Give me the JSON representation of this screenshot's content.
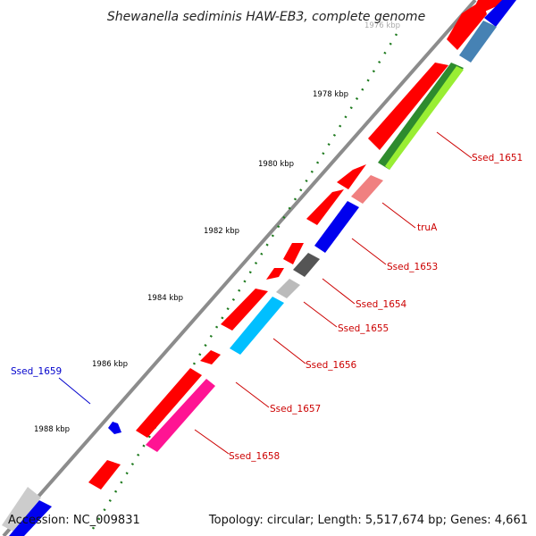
{
  "title": "Shewanella sediminis HAW-EB3, complete genome",
  "footer": {
    "accession": "Accession: NC_009831",
    "summary": "Topology: circular; Length: 5,517,674 bp; Genes: 4,661"
  },
  "ticks": [
    {
      "label": "1976 kbp",
      "faded": true
    },
    {
      "label": "1978 kbp"
    },
    {
      "label": "1980 kbp"
    },
    {
      "label": "1982 kbp"
    },
    {
      "label": "1984 kbp"
    },
    {
      "label": "1986 kbp"
    },
    {
      "label": "1988 kbp"
    }
  ],
  "gene_labels": [
    {
      "text": "Ssed_1651",
      "color": "#cc0000"
    },
    {
      "text": "truA",
      "color": "#cc0000"
    },
    {
      "text": "Ssed_1653",
      "color": "#cc0000"
    },
    {
      "text": "Ssed_1654",
      "color": "#cc0000"
    },
    {
      "text": "Ssed_1655",
      "color": "#cc0000"
    },
    {
      "text": "Ssed_1656",
      "color": "#cc0000"
    },
    {
      "text": "Ssed_1657",
      "color": "#cc0000"
    },
    {
      "text": "Ssed_1658",
      "color": "#cc0000"
    },
    {
      "text": "Ssed_1659",
      "color": "#0000cc"
    }
  ],
  "colors": {
    "backbone": "#8c8c8c",
    "tick": "#1e7a1e",
    "cds_red": "#ff0000",
    "blue": "#0000ee",
    "steelblue": "#4682b4",
    "green": "#2e8b2e",
    "lightgreen": "#99ee33",
    "pink": "#f08080",
    "darkgray": "#555555",
    "lightgray": "#bbbbbb",
    "cyan": "#00bfff",
    "magenta": "#ff1493"
  }
}
